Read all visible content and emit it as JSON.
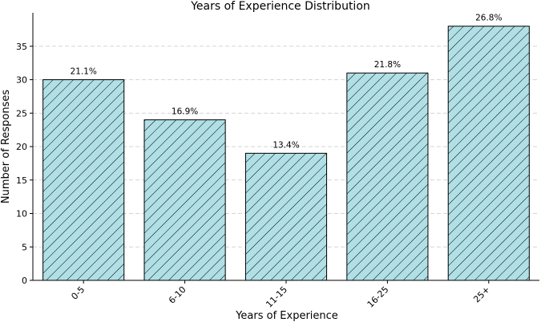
{
  "chart_data": {
    "type": "bar",
    "title": "Years of Experience Distribution",
    "xlabel": "Years of Experience",
    "ylabel": "Number of Responses",
    "categories": [
      "0-5",
      "6-10",
      "11-15",
      "16-25",
      "25+"
    ],
    "values": [
      30,
      24,
      19,
      31,
      38
    ],
    "data_labels": [
      "21.1%",
      "16.9%",
      "13.4%",
      "21.8%",
      "26.8%"
    ],
    "yticks": [
      0,
      5,
      10,
      15,
      20,
      25,
      30,
      35
    ],
    "ylim": [
      0,
      40
    ],
    "grid": true,
    "bar_color": "#b0e0e6",
    "hatch": "diagonal"
  }
}
